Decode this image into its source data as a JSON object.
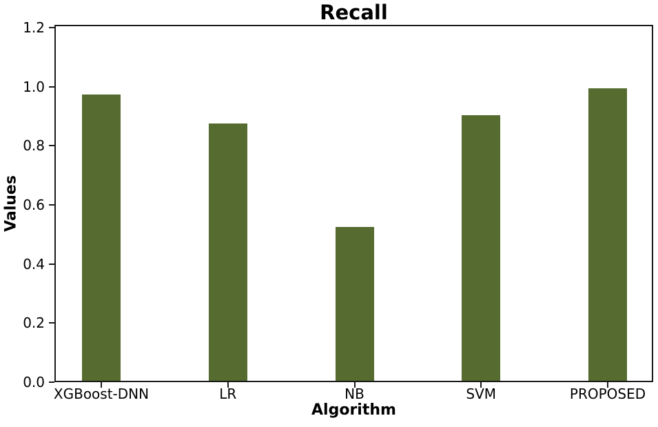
{
  "chart_data": {
    "type": "bar",
    "title": "Recall",
    "xlabel": "Algorithm",
    "ylabel": "Values",
    "categories": [
      "XGBoost-DNN",
      "LR",
      "NB",
      "SVM",
      "PROPOSED"
    ],
    "values": [
      0.97,
      0.87,
      0.52,
      0.9,
      0.99
    ],
    "ylim": [
      0.0,
      1.2
    ],
    "yticks": [
      0.0,
      0.2,
      0.4,
      0.6,
      0.8,
      1.0,
      1.2
    ],
    "ytick_labels": [
      "0.0",
      "0.2",
      "0.4",
      "0.6",
      "0.8",
      "1.0",
      "1.2"
    ],
    "bar_color": "#556B2F",
    "axis_color": "#1a1a1a",
    "grid": false,
    "legend": null
  }
}
